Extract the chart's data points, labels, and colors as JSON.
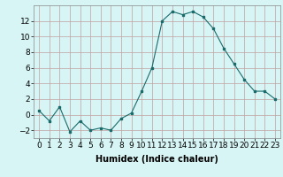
{
  "x": [
    0,
    1,
    2,
    3,
    4,
    5,
    6,
    7,
    8,
    9,
    10,
    11,
    12,
    13,
    14,
    15,
    16,
    17,
    18,
    19,
    20,
    21,
    22,
    23
  ],
  "y": [
    0.5,
    -0.8,
    1.0,
    -2.2,
    -0.8,
    -2.0,
    -1.7,
    -2.0,
    -0.5,
    0.2,
    3.0,
    6.0,
    12.0,
    13.2,
    12.8,
    13.2,
    12.5,
    11.0,
    8.5,
    6.5,
    4.5,
    3.0,
    3.0,
    2.0
  ],
  "line_color": "#1a6b6b",
  "marker": "s",
  "marker_size": 2,
  "bg_color": "#d8f5f5",
  "grid_color": "#c0a0a0",
  "xlabel": "Humidex (Indice chaleur)",
  "xlim": [
    -0.5,
    23.5
  ],
  "ylim": [
    -3,
    14
  ],
  "yticks": [
    -2,
    0,
    2,
    4,
    6,
    8,
    10,
    12
  ],
  "xlabel_fontsize": 7,
  "tick_fontsize": 6.5
}
